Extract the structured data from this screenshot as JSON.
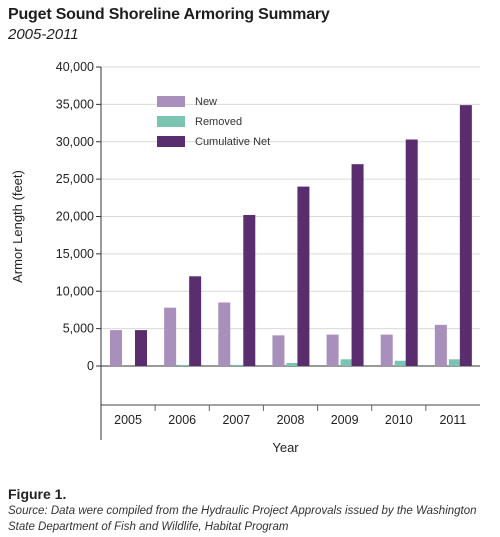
{
  "title": "Puget Sound Shoreline Armoring Summary",
  "subtitle": "2005-2011",
  "figure_label": "Figure 1.",
  "source": "Source: Data were compiled from the Hydraulic Project Approvals issued by the Washington State Department of Fish and Wildlife, Habitat Program",
  "chart_data": {
    "type": "bar",
    "xlabel": "Year",
    "ylabel": "Armor Length (feet)",
    "categories": [
      "2005",
      "2006",
      "2007",
      "2008",
      "2009",
      "2010",
      "2011"
    ],
    "ylim": [
      0,
      40000
    ],
    "yticks": [
      0,
      5000,
      10000,
      15000,
      20000,
      25000,
      30000,
      35000,
      40000
    ],
    "ytick_labels": [
      "0",
      "5,000",
      "10,000",
      "15,000",
      "20,000",
      "25,000",
      "30,000",
      "35,000",
      "40,000"
    ],
    "grid": true,
    "legend_position": "top-left",
    "series": [
      {
        "name": "New",
        "color": "#a98fbb",
        "values": [
          4800,
          7800,
          8500,
          4100,
          4200,
          4200,
          5500
        ]
      },
      {
        "name": "Removed",
        "color": "#7cc4b2",
        "values": [
          0,
          150,
          150,
          400,
          900,
          700,
          900
        ]
      },
      {
        "name": "Cumulative Net",
        "color": "#5a2e6e",
        "values": [
          4800,
          12000,
          20200,
          24000,
          27000,
          30300,
          34900
        ]
      }
    ]
  }
}
